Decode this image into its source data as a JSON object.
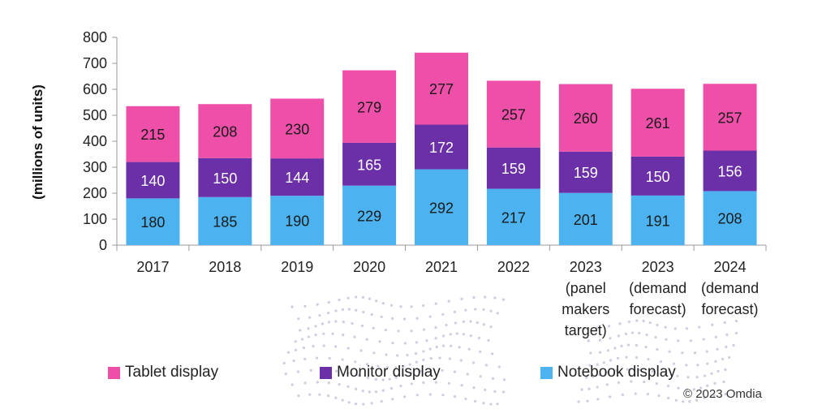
{
  "chart_data": {
    "type": "bar",
    "stacked": true,
    "ylabel": "(millions of units)",
    "ylim": [
      0,
      800
    ],
    "yticks": [
      0,
      100,
      200,
      300,
      400,
      500,
      600,
      700,
      800
    ],
    "categories": [
      [
        "2017"
      ],
      [
        "2018"
      ],
      [
        "2019"
      ],
      [
        "2020"
      ],
      [
        "2021"
      ],
      [
        "2022"
      ],
      [
        "2023",
        "(panel",
        "makers",
        "target)"
      ],
      [
        "2023",
        "(demand",
        "forecast)"
      ],
      [
        "2024",
        "(demand",
        "forecast)"
      ]
    ],
    "series": [
      {
        "name": "Notebook display",
        "color": "#4db3f0",
        "label_color": "#1a1a1a",
        "values": [
          180,
          185,
          190,
          229,
          292,
          217,
          201,
          191,
          208
        ]
      },
      {
        "name": "Monitor display",
        "color": "#6b2fa8",
        "label_color": "#ffffff",
        "values": [
          140,
          150,
          144,
          165,
          172,
          159,
          159,
          150,
          156
        ]
      },
      {
        "name": "Tablet display",
        "color": "#ee4fa9",
        "label_color": "#1a1a1a",
        "values": [
          215,
          208,
          230,
          279,
          277,
          257,
          260,
          261,
          257
        ]
      }
    ],
    "legend": [
      {
        "name": "Tablet display",
        "color": "#ee4fa9"
      },
      {
        "name": "Monitor display",
        "color": "#6b2fa8"
      },
      {
        "name": "Notebook display",
        "color": "#4db3f0"
      }
    ]
  },
  "footer": {
    "credit": "© 2023 Omdia"
  }
}
